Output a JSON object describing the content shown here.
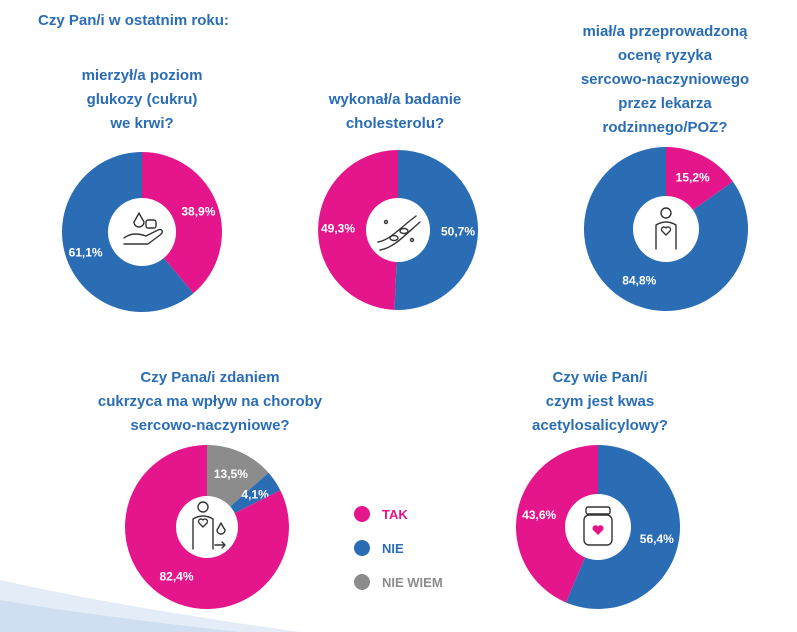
{
  "header": {
    "title": "Czy Pan/i w ostatnim roku:"
  },
  "colors": {
    "TAK": "#e5168c",
    "NIE": "#2a6db5",
    "NIE WIEM": "#8c8c8c",
    "title": "#2a6db5"
  },
  "questions": {
    "q1": [
      "mierzył/a poziom",
      "glukozy (cukru)",
      "we krwi?"
    ],
    "q2": [
      "wykonał/a badanie",
      "cholesterolu?"
    ],
    "q3": [
      "miał/a przeprowadzoną",
      "ocenę ryzyka",
      "sercowo-naczyniowego",
      "przez lekarza",
      "rodzinnego/POZ?"
    ],
    "q4": [
      "Czy Pana/i zdaniem",
      "cukrzyca ma wpływ na choroby",
      "sercowo-naczyniowe?"
    ],
    "q5": [
      "Czy wie Pan/i",
      "czym jest kwas",
      "acetylosalicylowy?"
    ]
  },
  "legend": [
    {
      "key": "TAK",
      "label": "TAK"
    },
    {
      "key": "NIE",
      "label": "NIE"
    },
    {
      "key": "NIE WIEM",
      "label": "NIE WIEM"
    }
  ],
  "chart_data": [
    {
      "type": "pie",
      "id": "q1",
      "icon": "hand-drop-icon",
      "title": "mierzył/a poziom glukozy (cukru) we krwi?",
      "slices": [
        {
          "category": "TAK",
          "value": 38.9,
          "label": "38,9%"
        },
        {
          "category": "NIE",
          "value": 61.1,
          "label": "61,1%"
        }
      ]
    },
    {
      "type": "pie",
      "id": "q2",
      "icon": "artery-icon",
      "title": "wykonał/a badanie cholesterolu?",
      "slices": [
        {
          "category": "TAK",
          "value": 49.3,
          "label": "49,3%"
        },
        {
          "category": "NIE",
          "value": 50.7,
          "label": "50,7%"
        }
      ]
    },
    {
      "type": "pie",
      "id": "q3",
      "icon": "person-heart-icon",
      "title": "miał/a przeprowadzoną ocenę ryzyka sercowo-naczyniowego przez lekarza rodzinnego/POZ?",
      "slices": [
        {
          "category": "TAK",
          "value": 15.2,
          "label": "15,2%"
        },
        {
          "category": "NIE",
          "value": 84.8,
          "label": "84,8%"
        }
      ]
    },
    {
      "type": "pie",
      "id": "q4",
      "icon": "person-drop-icon",
      "title": "Czy Pana/i zdaniem cukrzyca ma wpływ na choroby sercowo-naczyniowe?",
      "slices": [
        {
          "category": "NIE WIEM",
          "value": 13.5,
          "label": "13,5%"
        },
        {
          "category": "NIE",
          "value": 4.1,
          "label": "4,1%"
        },
        {
          "category": "TAK",
          "value": 82.4,
          "label": "82,4%"
        }
      ]
    },
    {
      "type": "pie",
      "id": "q5",
      "icon": "pill-bottle-icon",
      "title": "Czy wie Pan/i czym jest kwas acetylosalicylowy?",
      "slices": [
        {
          "category": "TAK",
          "value": 43.6,
          "label": "43,6%"
        },
        {
          "category": "NIE",
          "value": 56.4,
          "label": "56,4%"
        }
      ]
    }
  ]
}
